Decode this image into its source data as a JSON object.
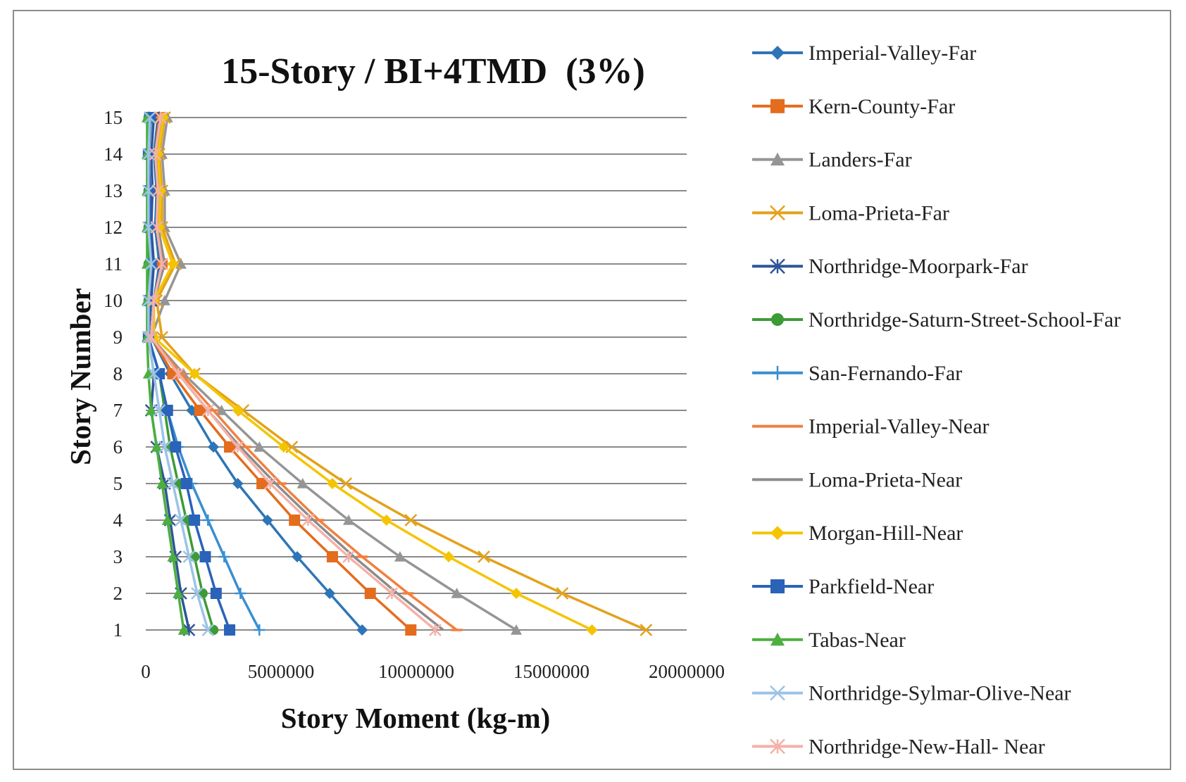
{
  "chart_data": {
    "type": "line",
    "title": "15-Story / BI+4TMD  (3%)",
    "xlabel": "Story Moment (kg-m)",
    "ylabel": "Story Number",
    "xlim": [
      0,
      20000000
    ],
    "ylim": [
      1,
      15
    ],
    "x_ticks": [
      "0",
      "5000000",
      "10000000",
      "15000000",
      "20000000"
    ],
    "y_ticks": [
      "1",
      "2",
      "3",
      "4",
      "5",
      "6",
      "7",
      "8",
      "9",
      "10",
      "11",
      "12",
      "13",
      "14",
      "15"
    ],
    "grid": "horizontal",
    "legend_position": "right",
    "stories": [
      1,
      2,
      3,
      4,
      5,
      6,
      7,
      8,
      9,
      10,
      11,
      12,
      13,
      14,
      15
    ],
    "series": [
      {
        "name": "Imperial-Valley-Far",
        "color": "#2e75b6",
        "marker": "diamond",
        "values": [
          8000000,
          6800000,
          5600000,
          4500000,
          3400000,
          2500000,
          1700000,
          900000,
          200000,
          300000,
          500000,
          350000,
          400000,
          300000,
          450000
        ]
      },
      {
        "name": "Kern-County-Far",
        "color": "#e46c1d",
        "marker": "square",
        "values": [
          9800000,
          8300000,
          6900000,
          5500000,
          4300000,
          3100000,
          2000000,
          1000000,
          200000,
          300000,
          600000,
          400000,
          450000,
          350000,
          500000
        ]
      },
      {
        "name": "Landers-Far",
        "color": "#959595",
        "marker": "triangle",
        "values": [
          13700000,
          11500000,
          9400000,
          7500000,
          5800000,
          4200000,
          2800000,
          1400000,
          200000,
          700000,
          1300000,
          700000,
          700000,
          600000,
          800000
        ]
      },
      {
        "name": "Loma-Prieta-Far",
        "color": "#e3a21a",
        "marker": "x",
        "values": [
          18500000,
          15400000,
          12500000,
          9800000,
          7400000,
          5400000,
          3600000,
          1800000,
          600000,
          400000,
          1100000,
          600000,
          600000,
          500000,
          700000
        ]
      },
      {
        "name": "Northridge-Moorpark-Far",
        "color": "#2f5597",
        "marker": "asterisk",
        "values": [
          1600000,
          1300000,
          1100000,
          900000,
          700000,
          400000,
          200000,
          300000,
          100000,
          200000,
          300000,
          200000,
          250000,
          200000,
          300000
        ]
      },
      {
        "name": "Northridge-Saturn-Street-School-Far",
        "color": "#3d9b35",
        "marker": "circle",
        "values": [
          2500000,
          2100000,
          1800000,
          1500000,
          1200000,
          900000,
          700000,
          500000,
          100000,
          100000,
          100000,
          100000,
          100000,
          100000,
          100000
        ]
      },
      {
        "name": "San-Fernando-Far",
        "color": "#3a8fd0",
        "marker": "plus",
        "values": [
          4200000,
          3500000,
          2900000,
          2300000,
          1700000,
          1200000,
          800000,
          500000,
          100000,
          150000,
          200000,
          150000,
          150000,
          100000,
          200000
        ]
      },
      {
        "name": "Imperial-Valley-Near",
        "color": "#f08040",
        "marker": "dash",
        "values": [
          11500000,
          9700000,
          8000000,
          6400000,
          5000000,
          3700000,
          2500000,
          1300000,
          200000,
          300000,
          700000,
          450000,
          500000,
          400000,
          600000
        ]
      },
      {
        "name": "Loma-Prieta-Near",
        "color": "#8c8c8c",
        "marker": "none",
        "values": [
          11000000,
          9300000,
          7700000,
          6200000,
          4800000,
          3500000,
          2300000,
          1200000,
          200000,
          300000,
          700000,
          450000,
          500000,
          400000,
          600000
        ]
      },
      {
        "name": "Morgan-Hill-Near",
        "color": "#f5c400",
        "marker": "diamond",
        "values": [
          16500000,
          13700000,
          11200000,
          8900000,
          6900000,
          5100000,
          3400000,
          1800000,
          300000,
          300000,
          1000000,
          500000,
          550000,
          450000,
          650000
        ]
      },
      {
        "name": "Parkfield-Near",
        "color": "#2a63b8",
        "marker": "square",
        "values": [
          3100000,
          2600000,
          2200000,
          1800000,
          1500000,
          1100000,
          800000,
          500000,
          100000,
          150000,
          200000,
          150000,
          150000,
          100000,
          150000
        ]
      },
      {
        "name": "Tabas-Near",
        "color": "#4caf3e",
        "marker": "triangle",
        "values": [
          1400000,
          1200000,
          1000000,
          800000,
          600000,
          400000,
          200000,
          100000,
          50000,
          50000,
          50000,
          50000,
          50000,
          50000,
          50000
        ]
      },
      {
        "name": "Northridge-Sylmar-Olive-Near",
        "color": "#9dc3e6",
        "marker": "x",
        "values": [
          2300000,
          1900000,
          1600000,
          1300000,
          1000000,
          700000,
          500000,
          300000,
          100000,
          100000,
          200000,
          100000,
          100000,
          100000,
          150000
        ]
      },
      {
        "name": "Northridge-New-Hall- Near",
        "color": "#f4b1a8",
        "marker": "asterisk",
        "values": [
          10700000,
          9100000,
          7500000,
          6000000,
          4600000,
          3400000,
          2300000,
          1200000,
          200000,
          300000,
          600000,
          400000,
          450000,
          350000,
          550000
        ]
      }
    ]
  }
}
